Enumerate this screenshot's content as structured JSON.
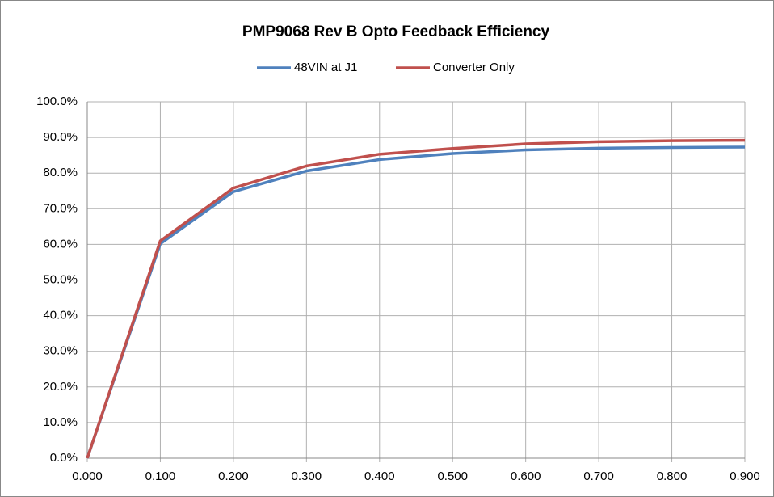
{
  "chart_data": {
    "type": "line",
    "title": "PMP9068 Rev B Opto Feedback Efficiency",
    "x": [
      0,
      0.1,
      0.2,
      0.3,
      0.4,
      0.5,
      0.6,
      0.7,
      0.8,
      0.9
    ],
    "series": [
      {
        "name": "48VIN at J1",
        "color": "#4f81bd",
        "values": [
          0,
          60.2,
          74.8,
          80.6,
          83.8,
          85.5,
          86.5,
          87.0,
          87.2,
          87.3
        ]
      },
      {
        "name": "Converter Only",
        "color": "#c0504d",
        "values": [
          0,
          61.0,
          75.8,
          82.0,
          85.3,
          86.9,
          88.2,
          88.8,
          89.1,
          89.2
        ]
      }
    ],
    "xlim": [
      0,
      0.9
    ],
    "xticks": [
      {
        "value": 0,
        "label": "0.000"
      },
      {
        "value": 0.1,
        "label": "0.100"
      },
      {
        "value": 0.2,
        "label": "0.200"
      },
      {
        "value": 0.3,
        "label": "0.300"
      },
      {
        "value": 0.4,
        "label": "0.400"
      },
      {
        "value": 0.5,
        "label": "0.500"
      },
      {
        "value": 0.6,
        "label": "0.600"
      },
      {
        "value": 0.7,
        "label": "0.700"
      },
      {
        "value": 0.8,
        "label": "0.800"
      },
      {
        "value": 0.9,
        "label": "0.900"
      }
    ],
    "ylim": [
      0,
      100
    ],
    "yticks": [
      {
        "value": 0,
        "label": "0.0%"
      },
      {
        "value": 10,
        "label": "10.0%"
      },
      {
        "value": 20,
        "label": "20.0%"
      },
      {
        "value": 30,
        "label": "30.0%"
      },
      {
        "value": 40,
        "label": "40.0%"
      },
      {
        "value": 50,
        "label": "50.0%"
      },
      {
        "value": 60,
        "label": "60.0%"
      },
      {
        "value": 70,
        "label": "70.0%"
      },
      {
        "value": 80,
        "label": "80.0%"
      },
      {
        "value": 90,
        "label": "90.0%"
      },
      {
        "value": 100,
        "label": "100.0%"
      }
    ],
    "grid": true,
    "legend": "top"
  }
}
